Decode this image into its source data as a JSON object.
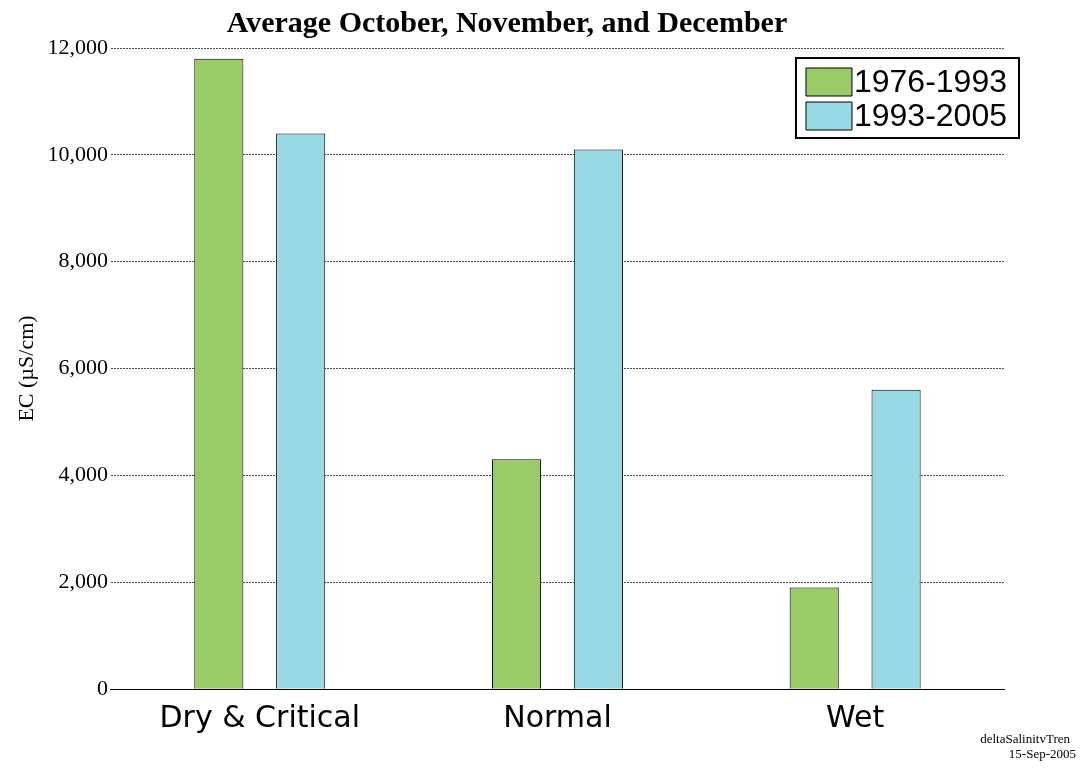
{
  "chart_data": {
    "type": "bar",
    "title": "Average October, November, and December",
    "ylabel": "EC (µS/cm)",
    "categories": [
      "Dry & Critical",
      "Normal",
      "Wet"
    ],
    "series": [
      {
        "name": "1976-1993",
        "color": "#99cc66",
        "values": [
          11800,
          4300,
          1900
        ]
      },
      {
        "name": "1993-2005",
        "color": "#99d9e6",
        "values": [
          10400,
          10100,
          5600
        ]
      }
    ],
    "ylim": [
      0,
      12000
    ],
    "yticks": [
      {
        "value": 0,
        "label": "0"
      },
      {
        "value": 2000,
        "label": "2,000"
      },
      {
        "value": 4000,
        "label": "4,000"
      },
      {
        "value": 6000,
        "label": "6,000"
      },
      {
        "value": 8000,
        "label": "8,000"
      },
      {
        "value": 10000,
        "label": "10,000"
      },
      {
        "value": 12000,
        "label": "12,000"
      }
    ],
    "grid": "y",
    "legend": "top right",
    "annotations": [
      "deltaSalinitvTren",
      "15-Sep-2005"
    ]
  }
}
